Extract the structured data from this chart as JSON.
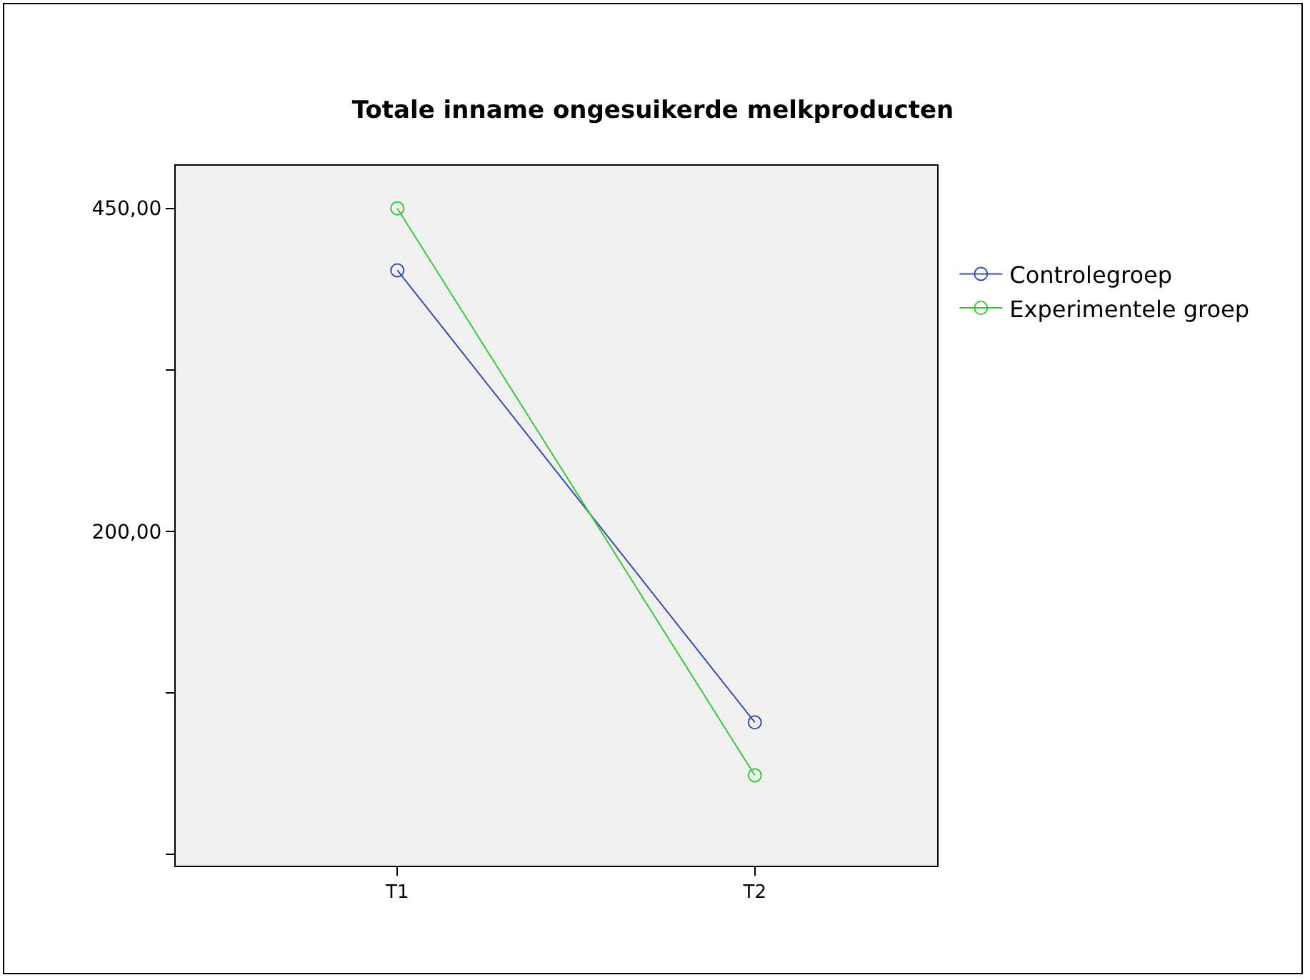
{
  "chart_data": {
    "type": "line",
    "title": "Totale inname ongesuikerde melkproducten",
    "categories": [
      "T1",
      "T2"
    ],
    "series": [
      {
        "name": "Controlegroep",
        "color": "#3b4ba8",
        "values": [
          402,
          52
        ]
      },
      {
        "name": "Experimentele groep",
        "color": "#3fc43f",
        "values": [
          450,
          11
        ]
      }
    ],
    "ylim": [
      -59,
      483
    ],
    "yticks": [
      {
        "value": -50,
        "label": null
      },
      {
        "value": 75,
        "label": null
      },
      {
        "value": 200,
        "label": "200,00"
      },
      {
        "value": 325,
        "label": null
      },
      {
        "value": 450,
        "label": "450,00"
      }
    ],
    "grid": false,
    "legend": "right",
    "marker": "circle",
    "line_style": "solid"
  }
}
